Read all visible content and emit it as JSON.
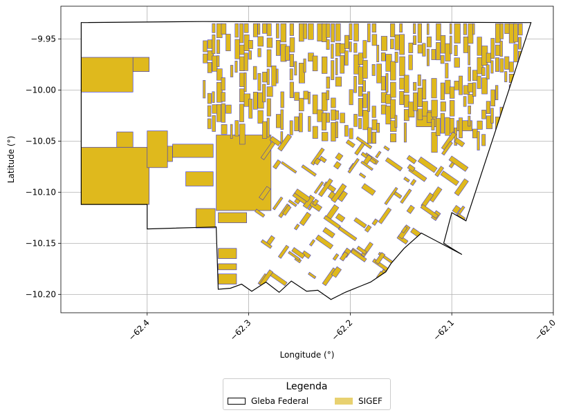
{
  "chart_data": {
    "type": "map",
    "xlabel": "Longitude (°)",
    "ylabel": "Latitude (°)",
    "xlim": [
      -62.485,
      -62.0
    ],
    "ylim": [
      -10.218,
      -9.918
    ],
    "xticks": [
      -62.4,
      -62.3,
      -62.2,
      -62.1,
      -62.0
    ],
    "xtick_labels": [
      "−62.4",
      "−62.3",
      "−62.2",
      "−62.1",
      "−62.0"
    ],
    "yticks": [
      -9.95,
      -10.0,
      -10.05,
      -10.1,
      -10.15,
      -10.2
    ],
    "ytick_labels": [
      "−9.95",
      "−10.00",
      "−10.05",
      "−10.10",
      "−10.15",
      "−10.20"
    ],
    "grid": true,
    "legend": {
      "title": "Legenda",
      "placement": "bottom-center",
      "entries": [
        {
          "label": "Gleba Federal",
          "style": "outline",
          "edge_color": "#000000",
          "fill": "#ffffff"
        },
        {
          "label": "SIGEF",
          "style": "fill",
          "fill": "#e8d170"
        }
      ]
    },
    "colors": {
      "sigef_fill": "#dfb91d",
      "sigef_edge": "#2a2ad8",
      "gleba_edge": "#000000",
      "grid": "#b0b0b0"
    },
    "gleba_boundary": [
      [
        -62.465,
        -9.934
      ],
      [
        -62.345,
        -9.933
      ],
      [
        -62.022,
        -9.934
      ],
      [
        -62.086,
        -10.128
      ],
      [
        -62.1,
        -10.12
      ],
      [
        -62.108,
        -10.15
      ],
      [
        -62.1,
        -10.155
      ],
      [
        -62.09,
        -10.161
      ],
      [
        -62.13,
        -10.14
      ],
      [
        -62.147,
        -10.155
      ],
      [
        -62.16,
        -10.17
      ],
      [
        -62.165,
        -10.178
      ],
      [
        -62.18,
        -10.188
      ],
      [
        -62.19,
        -10.192
      ],
      [
        -62.205,
        -10.198
      ],
      [
        -62.219,
        -10.205
      ],
      [
        -62.232,
        -10.196
      ],
      [
        -62.243,
        -10.197
      ],
      [
        -62.258,
        -10.187
      ],
      [
        -62.27,
        -10.198
      ],
      [
        -62.283,
        -10.188
      ],
      [
        -62.297,
        -10.197
      ],
      [
        -62.307,
        -10.19
      ],
      [
        -62.318,
        -10.194
      ],
      [
        -62.33,
        -10.195
      ],
      [
        -62.332,
        -10.134
      ],
      [
        -62.4,
        -10.136
      ],
      [
        -62.4,
        -10.112
      ],
      [
        -62.465,
        -10.112
      ],
      [
        -62.465,
        -9.934
      ]
    ],
    "sigef_blocks": [
      {
        "lon": [
          -62.465,
          -62.414
        ],
        "lat": [
          -10.002,
          -9.968
        ]
      },
      {
        "lon": [
          -62.414,
          -62.398
        ],
        "lat": [
          -9.982,
          -9.968
        ]
      },
      {
        "lon": [
          -62.465,
          -62.398
        ],
        "lat": [
          -10.112,
          -10.056
        ]
      },
      {
        "lon": [
          -62.43,
          -62.414
        ],
        "lat": [
          -10.056,
          -10.041
        ]
      },
      {
        "lon": [
          -62.398,
          -62.375
        ],
        "lat": [
          -10.07,
          -10.055
        ]
      },
      {
        "lon": [
          -62.375,
          -62.335
        ],
        "lat": [
          -10.066,
          -10.053
        ]
      },
      {
        "lon": [
          -62.332,
          -62.278
        ],
        "lat": [
          -10.118,
          -10.044
        ]
      },
      {
        "lon": [
          -62.33,
          -62.302
        ],
        "lat": [
          -10.13,
          -10.12
        ]
      },
      {
        "lon": [
          -62.33,
          -62.312
        ],
        "lat": [
          -10.165,
          -10.155
        ]
      },
      {
        "lon": [
          -62.33,
          -62.312
        ],
        "lat": [
          -10.176,
          -10.17
        ]
      },
      {
        "lon": [
          -62.33,
          -62.312
        ],
        "lat": [
          -10.19,
          -10.18
        ]
      },
      {
        "lon": [
          -62.352,
          -62.333
        ],
        "lat": [
          -10.135,
          -10.116
        ]
      },
      {
        "lon": [
          -62.362,
          -62.335
        ],
        "lat": [
          -10.094,
          -10.08
        ]
      },
      {
        "lon": [
          -62.4,
          -62.38
        ],
        "lat": [
          -10.076,
          -10.04
        ]
      },
      {
        "lon": [
          -62.135,
          -62.115
        ],
        "lat": [
          -10.036,
          -10.02
        ]
      },
      {
        "lon": [
          -62.095,
          -62.08
        ],
        "lat": [
          -10.04,
          -10.03
        ]
      }
    ]
  }
}
